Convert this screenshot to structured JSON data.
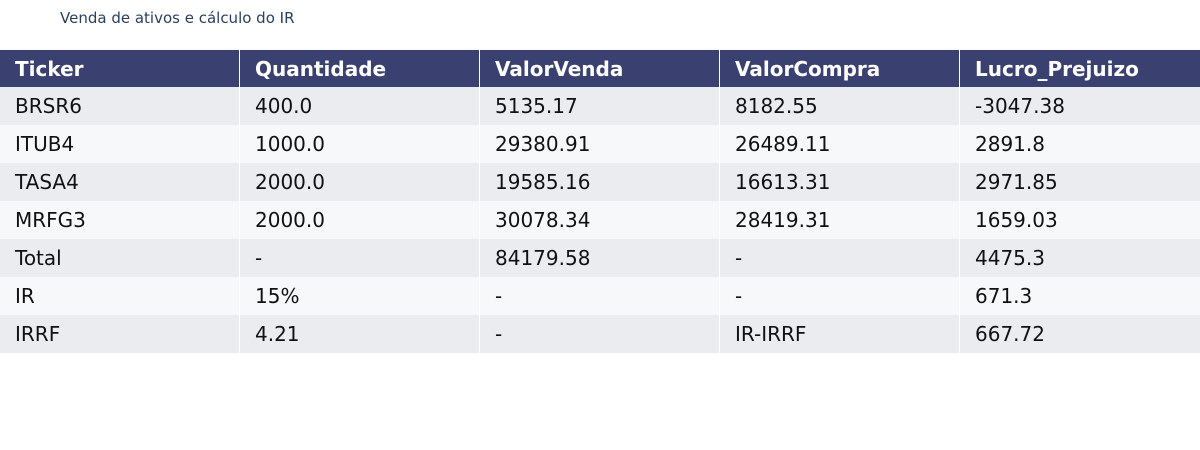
{
  "chart_data": {
    "type": "table",
    "title": "Venda de ativos e cálculo do IR",
    "header": [
      "Ticker",
      "Quantidade",
      "ValorVenda",
      "ValorCompra",
      "Lucro_Prejuizo"
    ],
    "rows": [
      [
        "BRSR6",
        "400.0",
        "5135.17",
        "8182.55",
        "-3047.38"
      ],
      [
        "ITUB4",
        "1000.0",
        "29380.91",
        "26489.11",
        "2891.8"
      ],
      [
        "TASA4",
        "2000.0",
        "19585.16",
        "16613.31",
        "2971.85"
      ],
      [
        "MRFG3",
        "2000.0",
        "30078.34",
        "28419.31",
        "1659.03"
      ],
      [
        "Total",
        "-",
        "84179.58",
        "-",
        "4475.3"
      ],
      [
        "IR",
        "15%",
        "-",
        "-",
        "671.3"
      ],
      [
        "IRRF",
        "4.21",
        "-",
        "IR-IRRF",
        "667.72"
      ]
    ],
    "colors": {
      "header_fill": "#3a4170",
      "header_text": "#ffffff",
      "row_fill_odd": "#ebecf0",
      "row_fill_even": "#f7f8fa",
      "title_text": "#2a3f5f"
    }
  }
}
